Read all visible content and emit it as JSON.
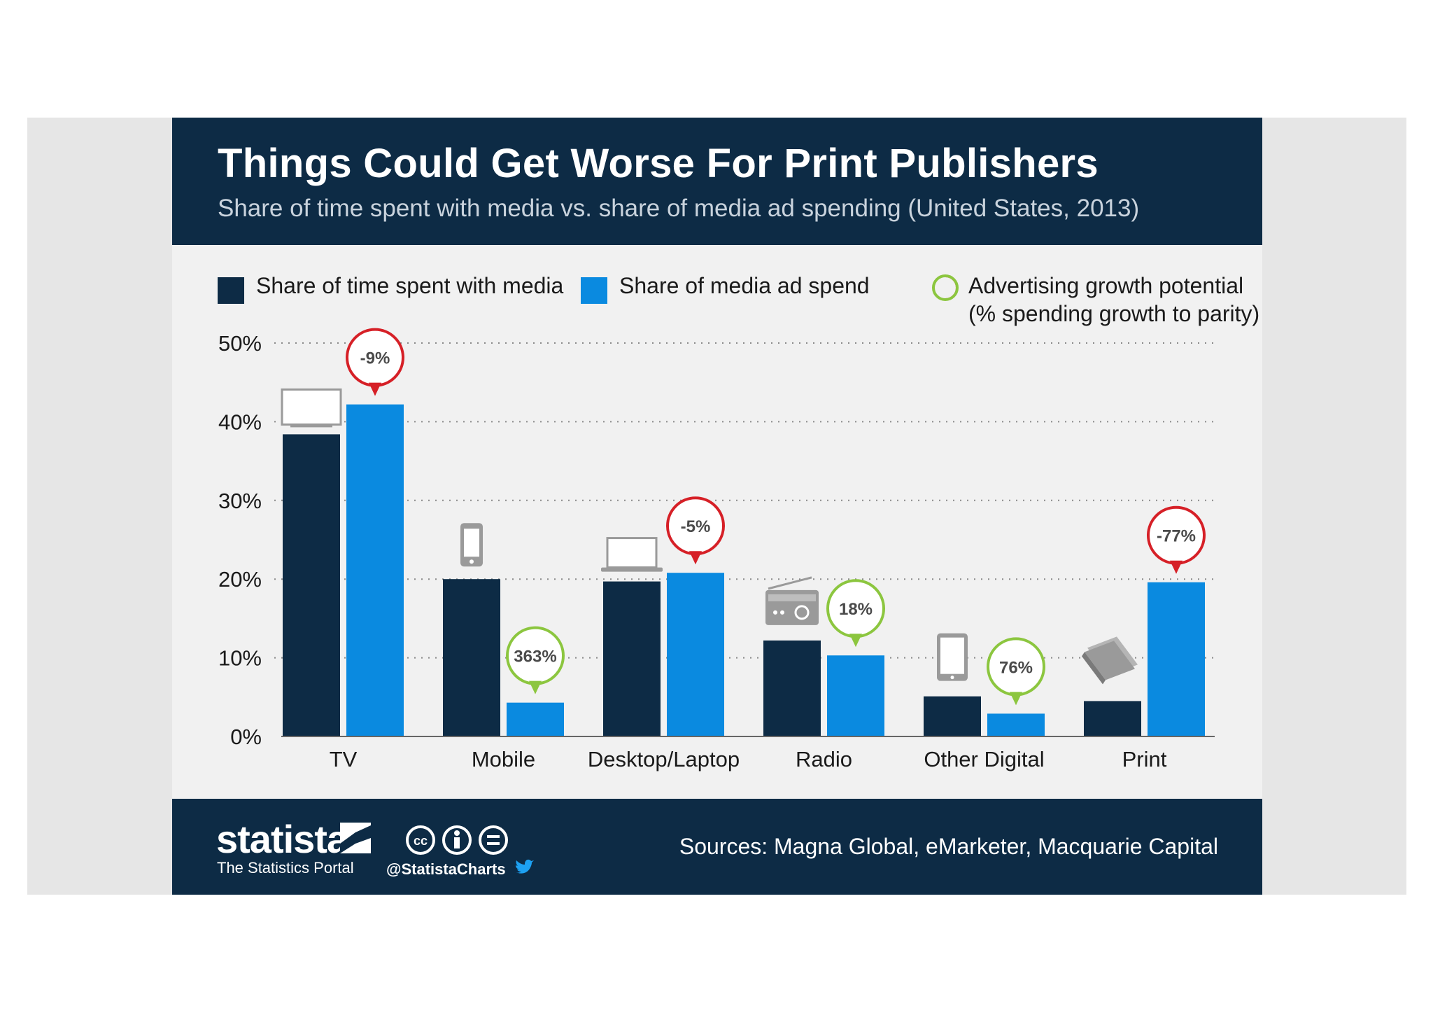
{
  "title": "Things Could Get Worse For Print Publishers",
  "subtitle": "Share of time spent with media vs. share of media ad spending (United States, 2013)",
  "legend": {
    "time": "Share of time spent with media",
    "spend": "Share of media ad spend",
    "growth_line1": "Advertising growth potential",
    "growth_line2": "(% spending growth to parity)"
  },
  "colors": {
    "time": "#0d2b45",
    "spend": "#0a8ae0",
    "growth_positive": "#8cc63f",
    "growth_negative": "#d62027",
    "header": "#0d2b45"
  },
  "chart_data": {
    "type": "bar",
    "title": "Things Could Get Worse For Print Publishers",
    "subtitle": "Share of time spent with media vs. share of media ad spending (United States, 2013)",
    "categories": [
      "TV",
      "Mobile",
      "Desktop/Laptop",
      "Radio",
      "Other Digital",
      "Print"
    ],
    "series": [
      {
        "name": "Share of time spent with media",
        "values": [
          38.4,
          20.0,
          19.7,
          12.2,
          5.1,
          4.5
        ]
      },
      {
        "name": "Share of media ad spend",
        "values": [
          42.2,
          4.3,
          20.8,
          10.3,
          2.9,
          19.6
        ]
      }
    ],
    "growth_labels": [
      "-9%",
      "363%",
      "-5%",
      "18%",
      "76%",
      "-77%"
    ],
    "growth_positive": [
      false,
      true,
      false,
      true,
      true,
      false
    ],
    "category_icons": [
      "tv-icon",
      "smartphone-icon",
      "laptop-icon",
      "radio-icon",
      "tablet-icon",
      "newspaper-icon"
    ],
    "yticks": [
      "0%",
      "10%",
      "20%",
      "30%",
      "40%",
      "50%"
    ],
    "ylim": [
      0,
      50
    ],
    "xlabel": "",
    "ylabel": "",
    "grid": true
  },
  "footer": {
    "brand": "statista",
    "tagline": "The Statistics Portal",
    "handle": "@StatistaCharts",
    "sources": "Sources: Magna Global, eMarketer, Macquarie Capital"
  }
}
